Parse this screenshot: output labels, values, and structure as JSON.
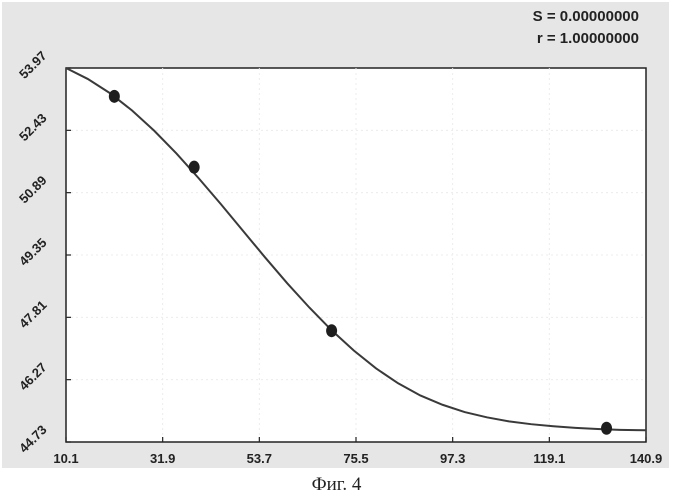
{
  "stats": {
    "s_label": "S = 0.00000000",
    "r_label": "r = 1.00000000"
  },
  "caption": "Фиг. 4",
  "colors": {
    "panel": "#e6e6e6",
    "plot_bg": "#ffffff",
    "curve": "#3a3a3a",
    "point": "#1e1e1e"
  },
  "chart_data": {
    "type": "line",
    "title": "",
    "xlabel": "",
    "ylabel": "",
    "xlim": [
      10.1,
      140.9
    ],
    "ylim": [
      44.73,
      53.97
    ],
    "x_ticks": [
      "10.1",
      "31.9",
      "53.7",
      "75.5",
      "97.3",
      "119.1",
      "140.9"
    ],
    "y_ticks": [
      "53.97",
      "52.43",
      "50.89",
      "49.35",
      "47.81",
      "46.27",
      "44.73"
    ],
    "grid": true,
    "series": [
      {
        "points": [
          {
            "x": 10.1,
            "y": 53.97
          },
          {
            "x": 15,
            "y": 53.7
          },
          {
            "x": 20,
            "y": 53.35
          },
          {
            "x": 25,
            "y": 52.92
          },
          {
            "x": 30,
            "y": 52.42
          },
          {
            "x": 35,
            "y": 51.86
          },
          {
            "x": 40,
            "y": 51.25
          },
          {
            "x": 45,
            "y": 50.61
          },
          {
            "x": 50,
            "y": 49.95
          },
          {
            "x": 55,
            "y": 49.29
          },
          {
            "x": 60,
            "y": 48.65
          },
          {
            "x": 65,
            "y": 48.05
          },
          {
            "x": 70,
            "y": 47.49
          },
          {
            "x": 75,
            "y": 46.99
          },
          {
            "x": 80,
            "y": 46.55
          },
          {
            "x": 85,
            "y": 46.18
          },
          {
            "x": 90,
            "y": 45.88
          },
          {
            "x": 95,
            "y": 45.65
          },
          {
            "x": 100,
            "y": 45.47
          },
          {
            "x": 105,
            "y": 45.34
          },
          {
            "x": 110,
            "y": 45.24
          },
          {
            "x": 115,
            "y": 45.17
          },
          {
            "x": 120,
            "y": 45.12
          },
          {
            "x": 125,
            "y": 45.08
          },
          {
            "x": 130,
            "y": 45.05
          },
          {
            "x": 135,
            "y": 45.03
          },
          {
            "x": 140.9,
            "y": 45.02
          }
        ]
      }
    ],
    "markers": [
      {
        "x": 21.0,
        "y": 53.27
      },
      {
        "x": 39.0,
        "y": 51.52
      },
      {
        "x": 70.0,
        "y": 47.48
      },
      {
        "x": 132.0,
        "y": 45.07
      }
    ]
  }
}
